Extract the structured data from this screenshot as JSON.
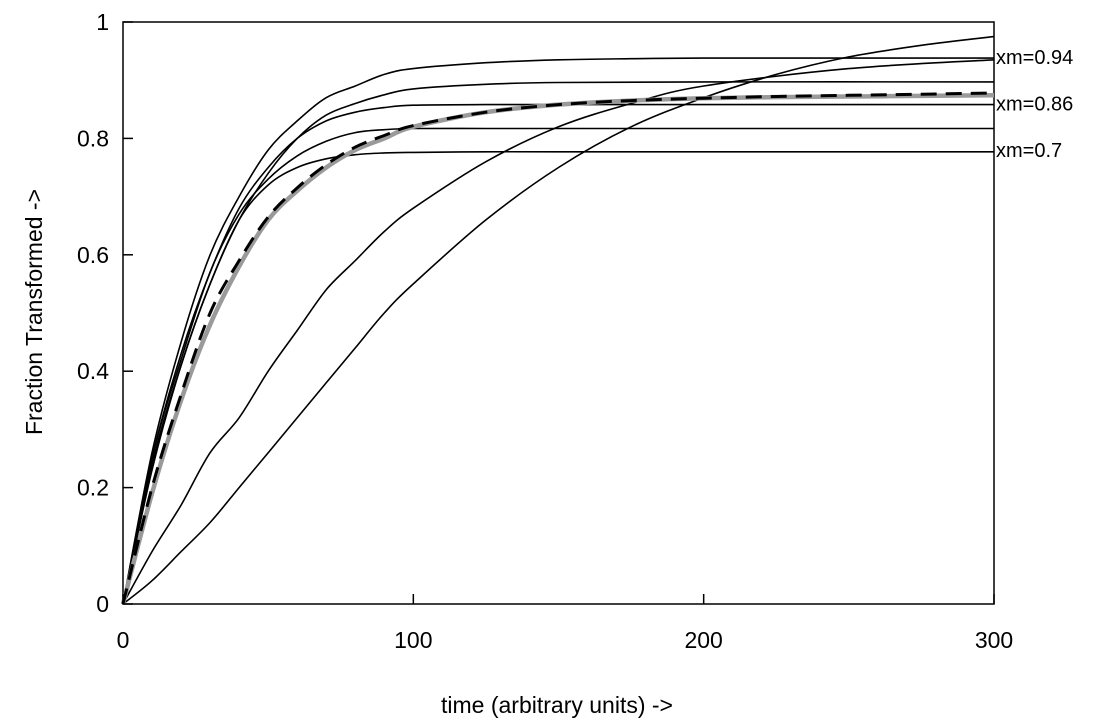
{
  "chart_data": {
    "type": "line",
    "title": "",
    "xlabel": "time (arbitrary units) ->",
    "ylabel": "Fraction Transformed ->",
    "xlim": [
      0,
      300
    ],
    "ylim": [
      0,
      1
    ],
    "x_ticks": [
      "0",
      "100",
      "200",
      "300"
    ],
    "y_ticks": [
      "0",
      "0.2",
      "0.4",
      "0.6",
      "0.8",
      "1"
    ],
    "grid": false,
    "legend": "none",
    "annotations": [
      {
        "text": "xm=0.94",
        "x": 300,
        "y": 0.94
      },
      {
        "text": "xm=0.86",
        "x": 300,
        "y": 0.86
      },
      {
        "text": "xm=0.7",
        "x": 300,
        "y": 0.78
      }
    ],
    "series": [
      {
        "style": "thin-black",
        "x": [
          0,
          10,
          20,
          30,
          40,
          50,
          60,
          70,
          80,
          90,
          100,
          125,
          150,
          175,
          200,
          250,
          300
        ],
        "y": [
          0,
          0.26,
          0.45,
          0.6,
          0.7,
          0.78,
          0.83,
          0.87,
          0.89,
          0.91,
          0.92,
          0.93,
          0.935,
          0.937,
          0.938,
          0.938,
          0.938
        ]
      },
      {
        "style": "thin-black",
        "x": [
          0,
          10,
          20,
          30,
          40,
          50,
          60,
          70,
          80,
          90,
          100,
          125,
          150,
          200,
          300
        ],
        "y": [
          0,
          0.23,
          0.41,
          0.55,
          0.66,
          0.74,
          0.8,
          0.84,
          0.86,
          0.875,
          0.885,
          0.893,
          0.896,
          0.897,
          0.897
        ]
      },
      {
        "style": "thin-black",
        "x": [
          0,
          10,
          20,
          30,
          40,
          50,
          60,
          70,
          80,
          90,
          100,
          125,
          150,
          200,
          300
        ],
        "y": [
          0,
          0.25,
          0.43,
          0.57,
          0.68,
          0.75,
          0.8,
          0.83,
          0.845,
          0.853,
          0.857,
          0.858,
          0.858,
          0.858,
          0.858
        ]
      },
      {
        "style": "thin-black",
        "x": [
          0,
          10,
          20,
          30,
          40,
          50,
          60,
          70,
          80,
          90,
          100,
          125,
          150,
          200,
          300
        ],
        "y": [
          0,
          0.25,
          0.42,
          0.57,
          0.67,
          0.73,
          0.77,
          0.795,
          0.81,
          0.815,
          0.817,
          0.817,
          0.817,
          0.817,
          0.817
        ]
      },
      {
        "style": "thin-black",
        "x": [
          0,
          10,
          20,
          30,
          40,
          50,
          60,
          70,
          80,
          90,
          100,
          125,
          150,
          200,
          300
        ],
        "y": [
          0,
          0.24,
          0.41,
          0.55,
          0.66,
          0.72,
          0.75,
          0.765,
          0.772,
          0.775,
          0.776,
          0.777,
          0.777,
          0.777,
          0.777
        ]
      },
      {
        "style": "thin-black",
        "x": [
          0,
          10,
          20,
          30,
          40,
          50,
          60,
          70,
          80,
          90,
          100,
          125,
          150,
          175,
          200,
          250,
          300
        ],
        "y": [
          0,
          0.09,
          0.17,
          0.26,
          0.32,
          0.4,
          0.47,
          0.54,
          0.59,
          0.64,
          0.68,
          0.76,
          0.82,
          0.86,
          0.89,
          0.92,
          0.935
        ]
      },
      {
        "style": "thin-black",
        "x": [
          0,
          10,
          20,
          30,
          40,
          50,
          60,
          70,
          80,
          90,
          100,
          125,
          150,
          175,
          200,
          225,
          250,
          275,
          300
        ],
        "y": [
          0,
          0.04,
          0.09,
          0.14,
          0.2,
          0.26,
          0.32,
          0.38,
          0.44,
          0.5,
          0.55,
          0.66,
          0.75,
          0.82,
          0.87,
          0.91,
          0.94,
          0.96,
          0.975
        ]
      },
      {
        "style": "gray-thick",
        "x": [
          0,
          10,
          20,
          30,
          40,
          50,
          60,
          70,
          80,
          90,
          100,
          125,
          150,
          175,
          200,
          225,
          250,
          275,
          300
        ],
        "y": [
          0,
          0.19,
          0.35,
          0.48,
          0.58,
          0.66,
          0.71,
          0.75,
          0.78,
          0.8,
          0.82,
          0.845,
          0.858,
          0.865,
          0.869,
          0.871,
          0.872,
          0.873,
          0.874
        ]
      },
      {
        "style": "black-dashed",
        "x": [
          0,
          10,
          20,
          30,
          40,
          50,
          60,
          70,
          80,
          90,
          100,
          125,
          150,
          175,
          200,
          225,
          250,
          275,
          300
        ],
        "y": [
          0,
          0.2,
          0.36,
          0.5,
          0.59,
          0.665,
          0.715,
          0.755,
          0.785,
          0.805,
          0.822,
          0.845,
          0.858,
          0.865,
          0.869,
          0.872,
          0.874,
          0.876,
          0.878
        ]
      }
    ]
  }
}
